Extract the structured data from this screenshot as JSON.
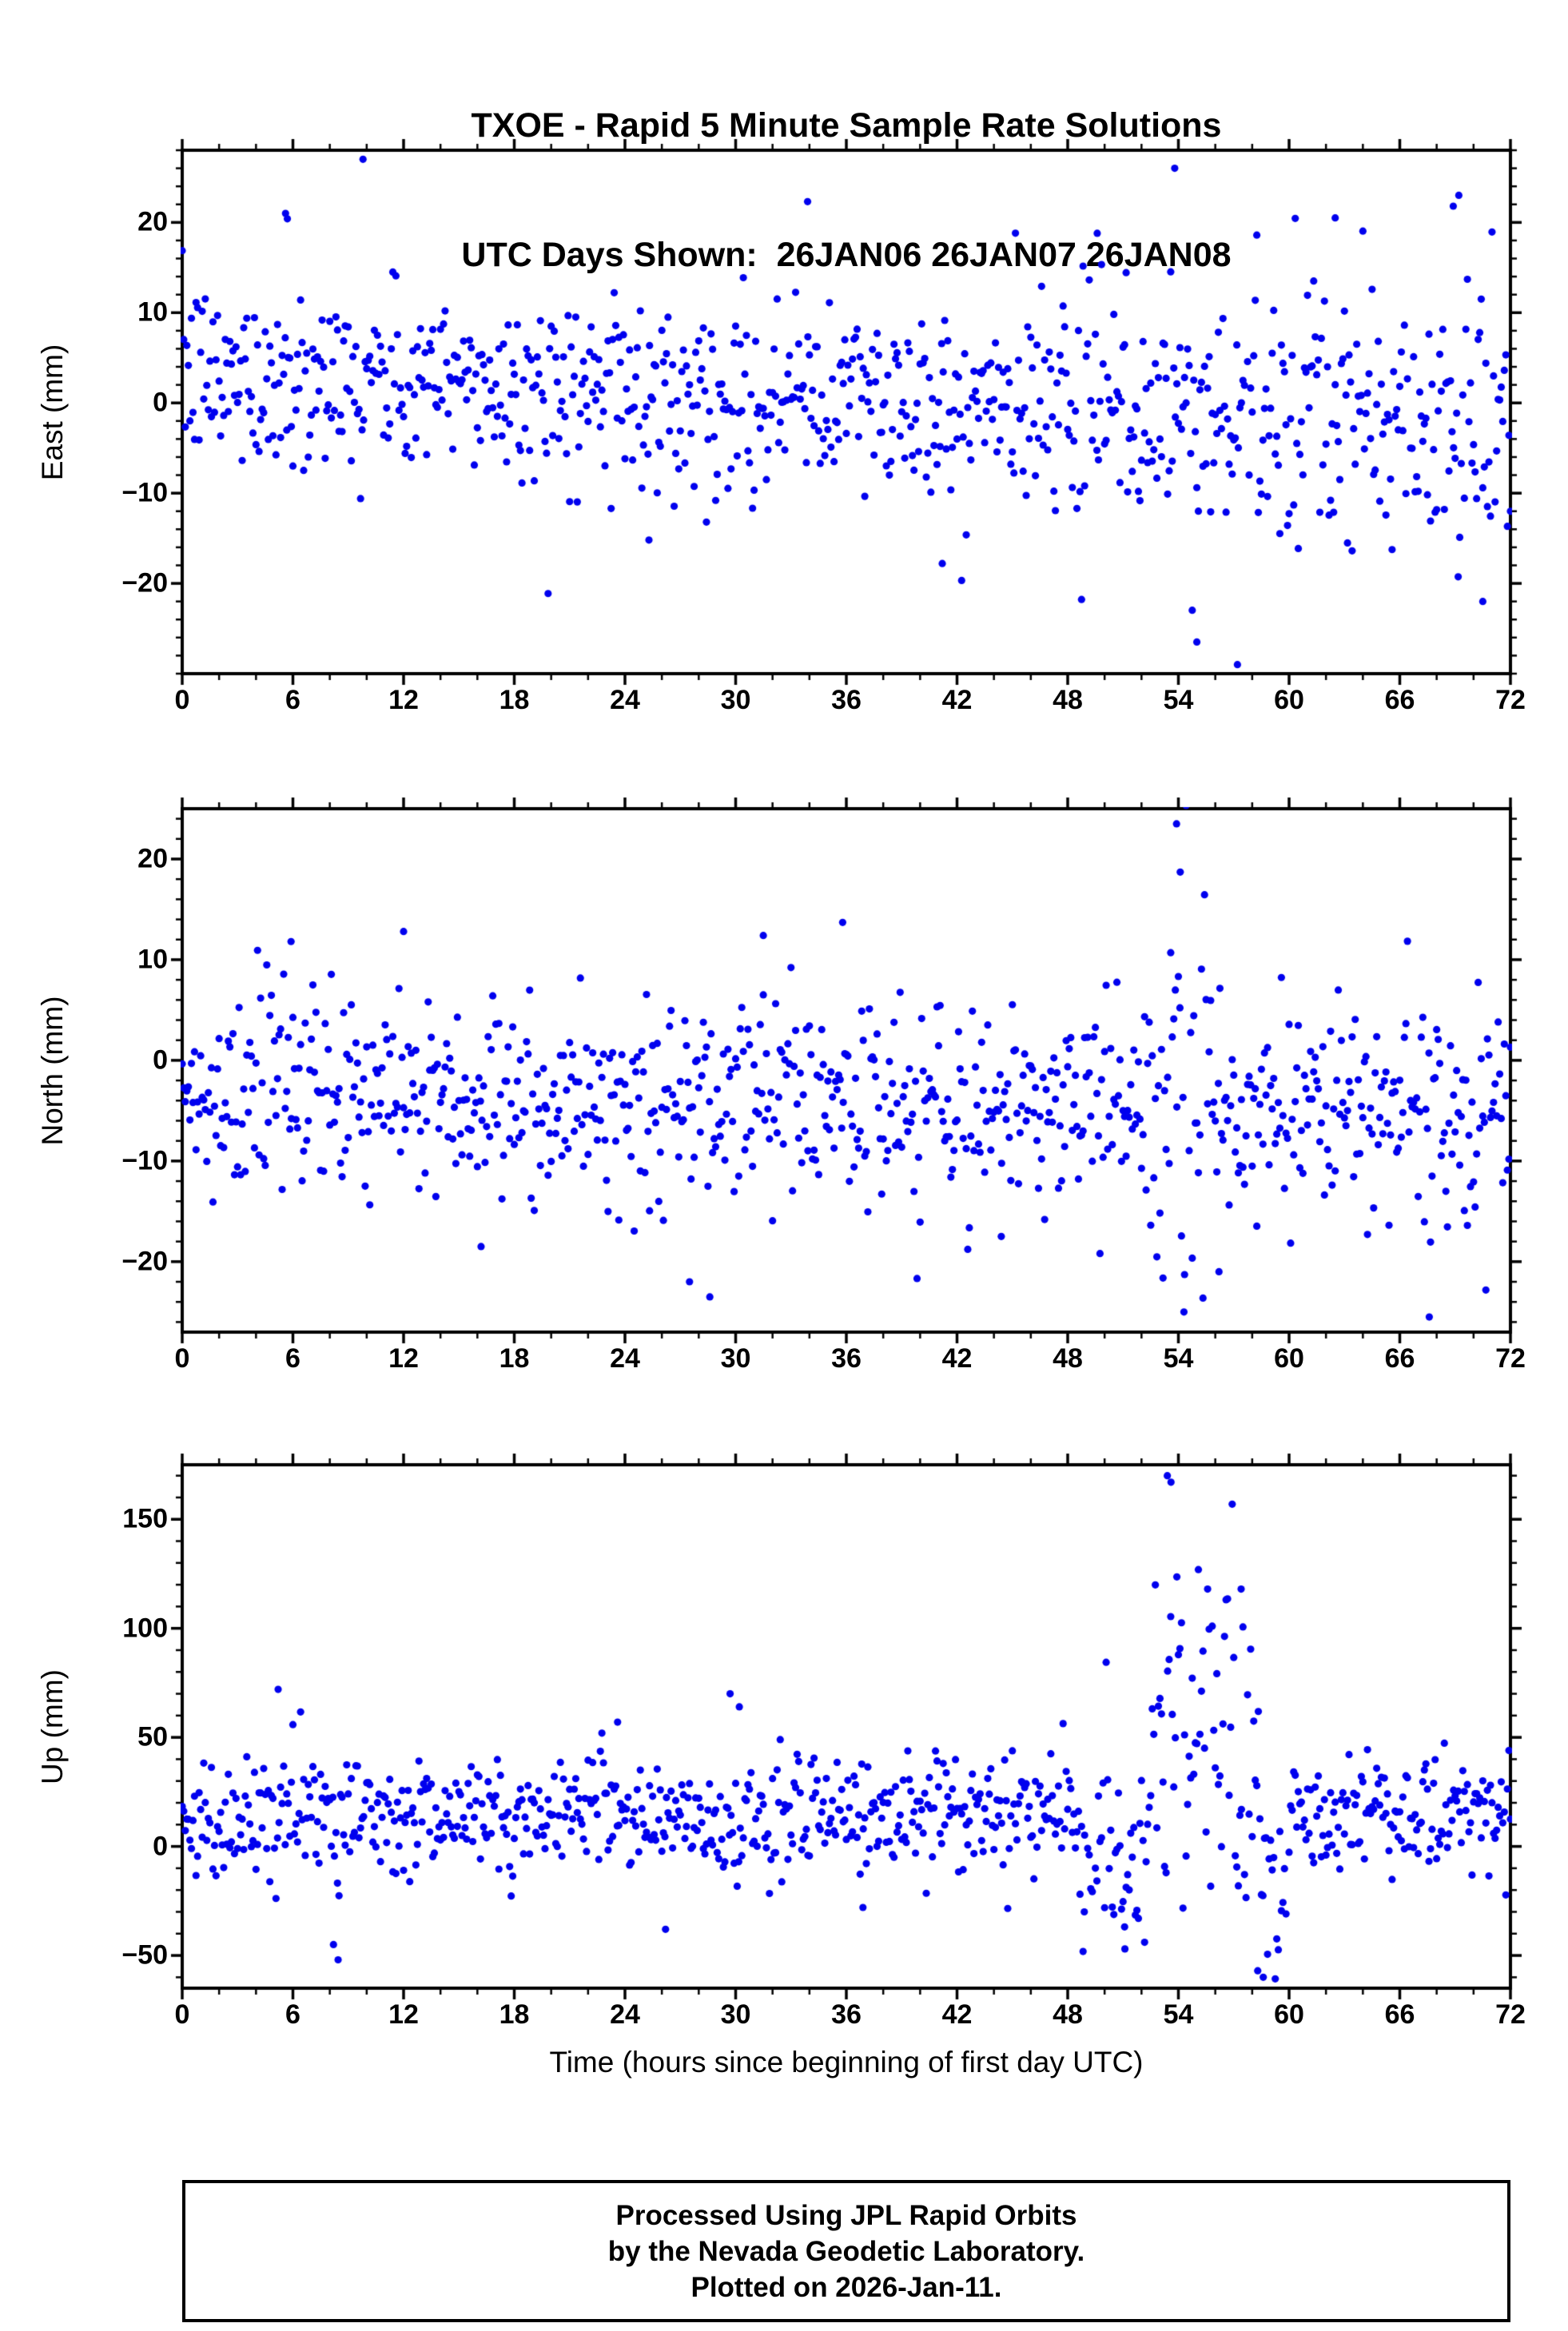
{
  "chart_data": {
    "type": "scatter",
    "title": "TXOE - Rapid 5 Minute Sample Rate Solutions",
    "subtitle": "UTC Days Shown:  26JAN06 26JAN07 26JAN08",
    "xlabel": "Time (hours since beginning of first day UTC)",
    "x_range": [
      0,
      72
    ],
    "x_major_ticks": [
      0,
      6,
      12,
      18,
      24,
      30,
      36,
      42,
      48,
      54,
      60,
      66,
      72
    ],
    "x_minor_step": 2,
    "sample_interval_hours": 0.0833333,
    "marker": {
      "color": "#0000ee",
      "radius_px": 4.6
    },
    "frame_color": "#000000",
    "legend": "none",
    "grid": false,
    "panels": [
      {
        "id": "east",
        "ylabel": "East (mm)",
        "ylim": [
          -30,
          28
        ],
        "yticks": [
          -20,
          -10,
          0,
          10,
          20
        ],
        "y_minor_step": 2,
        "series_model": {
          "seed": 12345,
          "mean_start": 3,
          "mean_end": -2.5,
          "std": 5,
          "outlier_prob": 0.02,
          "outlier_scale": 2.8,
          "events": [
            {
              "t0": 48,
              "t1": 72,
              "dmean": -0.5,
              "dstd": 2.5
            }
          ]
        },
        "extra_points": [
          [
            9.8,
            27
          ],
          [
            53.8,
            26
          ],
          [
            33.9,
            22.3
          ],
          [
            5.6,
            21
          ],
          [
            5.7,
            20.4
          ],
          [
            55.0,
            -26.5
          ],
          [
            57.2,
            -29
          ],
          [
            25.3,
            -15.2
          ],
          [
            41.2,
            -17.8
          ],
          [
            70.5,
            -22
          ],
          [
            69.2,
            23
          ],
          [
            68.9,
            21.8
          ],
          [
            62.5,
            20.5
          ],
          [
            49.6,
            18.8
          ]
        ]
      },
      {
        "id": "north",
        "ylabel": "North (mm)",
        "ylim": [
          -27,
          25
        ],
        "yticks": [
          -20,
          -10,
          0,
          10,
          20
        ],
        "y_minor_step": 2,
        "series_model": {
          "seed": 67890,
          "mean_start": -3.5,
          "mean_end": -5,
          "std": 5.2,
          "outlier_prob": 0.015,
          "outlier_scale": 2.2,
          "events": [
            {
              "t0": 53,
              "t1": 55.5,
              "dmean": 0,
              "dstd": 9
            }
          ]
        },
        "extra_points": [
          [
            53.9,
            23.5
          ],
          [
            54.1,
            18.7
          ],
          [
            54.3,
            -25
          ],
          [
            27.5,
            -22
          ],
          [
            28.6,
            -23.5
          ],
          [
            16.2,
            -18.5
          ],
          [
            5.9,
            11.8
          ],
          [
            12.0,
            12.8
          ],
          [
            31.5,
            12.4
          ],
          [
            35.8,
            13.7
          ],
          [
            67.6,
            -25.5
          ],
          [
            44.4,
            -17.5
          ],
          [
            56.2,
            -21
          ]
        ]
      },
      {
        "id": "up",
        "ylabel": "Up (mm)",
        "ylim": [
          -65,
          175
        ],
        "yticks": [
          -50,
          0,
          50,
          100,
          150
        ],
        "y_minor_step": 10,
        "series_model": {
          "seed": 24680,
          "mean_start": 13,
          "mean_end": 16,
          "std": 14,
          "outlier_prob": 0.01,
          "outlier_scale": 2,
          "events": [
            {
              "t0": 48.5,
              "t1": 52.5,
              "dmean": -18,
              "dstd": 12
            },
            {
              "t0": 52.5,
              "t1": 55.2,
              "dmean": 45,
              "dstd": 30
            },
            {
              "t0": 55.2,
              "t1": 58.5,
              "dmean": 30,
              "dstd": 28
            },
            {
              "t0": 58.5,
              "t1": 60,
              "dmean": -25,
              "dstd": 15
            }
          ]
        },
        "extra_points": [
          [
            53.4,
            170
          ],
          [
            53.6,
            167
          ],
          [
            57.4,
            118
          ],
          [
            58.3,
            -57
          ],
          [
            58.6,
            -60
          ],
          [
            51.1,
            -47
          ],
          [
            8.2,
            -45
          ],
          [
            8.45,
            -52
          ],
          [
            26.2,
            -38
          ],
          [
            5.2,
            72
          ],
          [
            29.7,
            70
          ],
          [
            30.2,
            64
          ],
          [
            23.6,
            57
          ],
          [
            36.9,
            -28
          ],
          [
            48.9,
            -30
          ]
        ]
      }
    ]
  },
  "footer": {
    "lines": [
      "Processed Using JPL Rapid Orbits",
      "by the Nevada Geodetic Laboratory.",
      "Plotted on 2026-Jan-11."
    ]
  }
}
